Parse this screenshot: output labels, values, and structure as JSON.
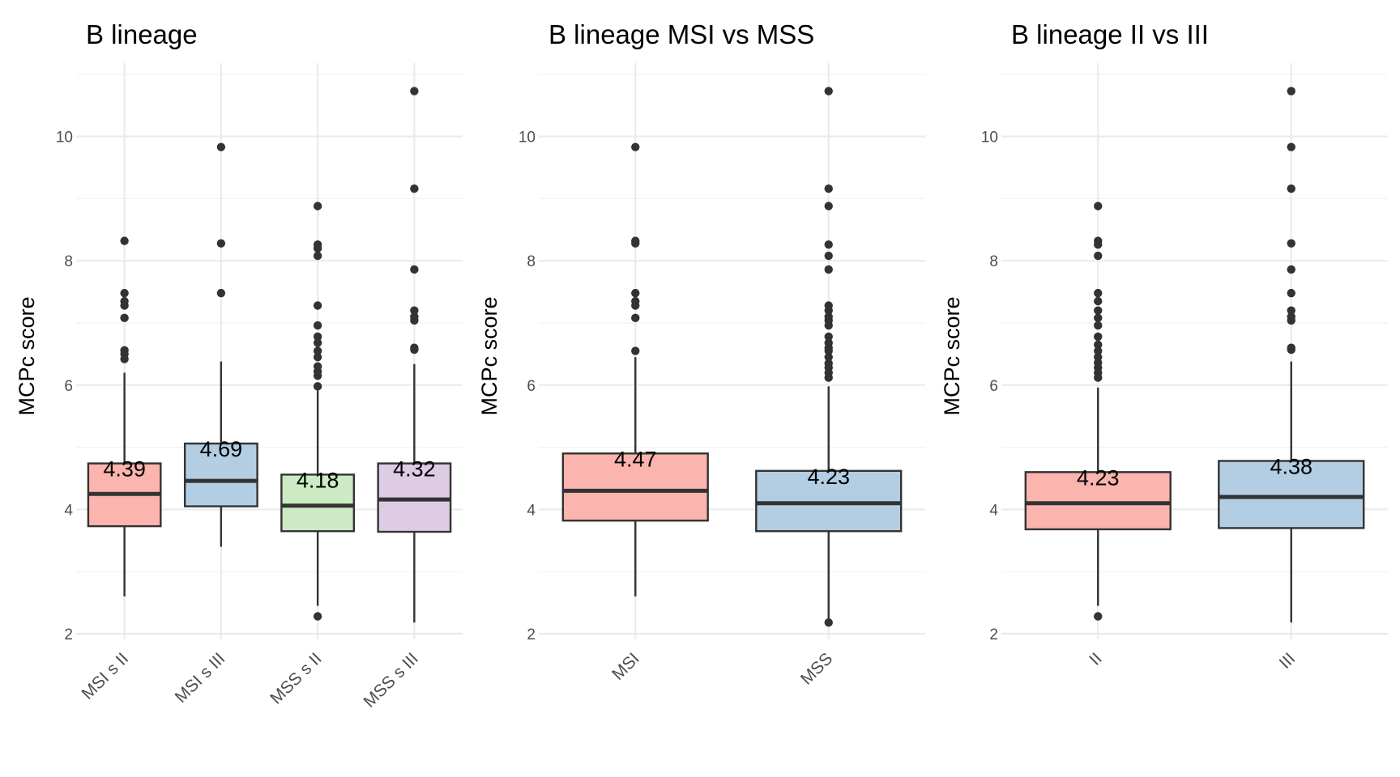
{
  "chart_data": [
    {
      "type": "box",
      "title": "B lineage",
      "ylabel": "MCPc score",
      "xlabel": "",
      "ylim": [
        2,
        11
      ],
      "yticks": [
        "2",
        "4",
        "6",
        "8",
        "10"
      ],
      "grid": true,
      "legend": "none",
      "categories": [
        "MSI s II",
        "MSI s III",
        "MSS s II",
        "MSS s III"
      ],
      "boxes": [
        {
          "category": "MSI s II",
          "color": "#FBB4AE",
          "q1": 3.73,
          "median": 4.25,
          "q3": 4.74,
          "whisker_low": 2.6,
          "whisker_high": 6.2,
          "mean_label": "4.39",
          "outliers": [
            8.32,
            7.48,
            7.35,
            7.28,
            7.08,
            6.56,
            6.5,
            6.42
          ]
        },
        {
          "category": "MSI s III",
          "color": "#B3CDE3",
          "q1": 4.05,
          "median": 4.46,
          "q3": 5.06,
          "whisker_low": 3.4,
          "whisker_high": 6.38,
          "mean_label": "4.69",
          "outliers": [
            9.83,
            8.28,
            7.48
          ]
        },
        {
          "category": "MSS s II",
          "color": "#CCEBC5",
          "q1": 3.65,
          "median": 4.06,
          "q3": 4.56,
          "whisker_low": 2.45,
          "whisker_high": 5.98,
          "mean_label": "4.18",
          "outliers": [
            8.88,
            8.26,
            8.2,
            8.08,
            7.28,
            6.96,
            6.78,
            6.68,
            6.55,
            6.45,
            6.3,
            6.22,
            6.15,
            5.98,
            2.28
          ]
        },
        {
          "category": "MSS s III",
          "color": "#DECBE4",
          "q1": 3.64,
          "median": 4.16,
          "q3": 4.74,
          "whisker_low": 2.18,
          "whisker_high": 6.34,
          "mean_label": "4.32",
          "outliers": [
            10.73,
            9.16,
            7.86,
            7.2,
            7.1,
            7.04,
            6.6,
            6.57
          ]
        }
      ]
    },
    {
      "type": "box",
      "title": "B lineage MSI vs MSS",
      "ylabel": "MCPc score",
      "xlabel": "",
      "ylim": [
        2,
        11
      ],
      "yticks": [
        "2",
        "4",
        "6",
        "8",
        "10"
      ],
      "grid": true,
      "legend": "none",
      "categories": [
        "MSI",
        "MSS"
      ],
      "boxes": [
        {
          "category": "MSI",
          "color": "#FBB4AE",
          "q1": 3.82,
          "median": 4.3,
          "q3": 4.9,
          "whisker_low": 2.6,
          "whisker_high": 6.45,
          "mean_label": "4.47",
          "outliers": [
            9.83,
            8.32,
            8.28,
            7.48,
            7.35,
            7.28,
            7.08,
            6.55
          ]
        },
        {
          "category": "MSS",
          "color": "#B3CDE3",
          "q1": 3.65,
          "median": 4.1,
          "q3": 4.62,
          "whisker_low": 2.18,
          "whisker_high": 5.98,
          "mean_label": "4.23",
          "outliers": [
            10.73,
            9.16,
            8.88,
            8.26,
            8.08,
            7.86,
            7.28,
            7.2,
            7.1,
            7.04,
            6.96,
            6.78,
            6.68,
            6.6,
            6.55,
            6.45,
            6.35,
            6.28,
            6.2,
            6.12,
            2.18
          ]
        }
      ]
    },
    {
      "type": "box",
      "title": "B lineage II vs III",
      "ylabel": "MCPc score",
      "xlabel": "",
      "ylim": [
        2,
        11
      ],
      "yticks": [
        "2",
        "4",
        "6",
        "8",
        "10"
      ],
      "grid": true,
      "legend": "none",
      "categories": [
        "II",
        "III"
      ],
      "boxes": [
        {
          "category": "II",
          "color": "#FBB4AE",
          "q1": 3.68,
          "median": 4.1,
          "q3": 4.6,
          "whisker_low": 2.45,
          "whisker_high": 5.96,
          "mean_label": "4.23",
          "outliers": [
            8.88,
            8.32,
            8.26,
            8.08,
            7.48,
            7.35,
            7.2,
            7.08,
            6.96,
            6.78,
            6.65,
            6.55,
            6.45,
            6.36,
            6.28,
            6.2,
            6.12,
            2.28
          ]
        },
        {
          "category": "III",
          "color": "#B3CDE3",
          "q1": 3.7,
          "median": 4.2,
          "q3": 4.78,
          "whisker_low": 2.18,
          "whisker_high": 6.38,
          "mean_label": "4.38",
          "outliers": [
            10.73,
            9.83,
            9.16,
            8.28,
            7.86,
            7.48,
            7.2,
            7.1,
            7.04,
            6.6,
            6.57
          ]
        }
      ]
    }
  ]
}
